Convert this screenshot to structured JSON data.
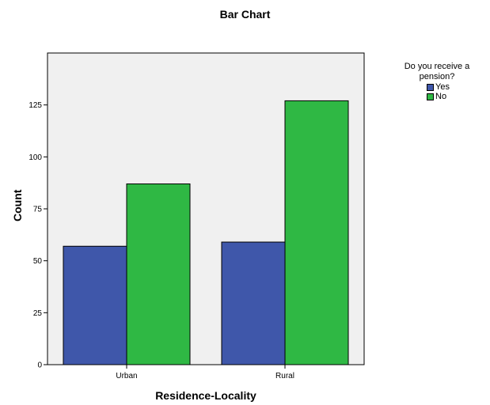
{
  "chart_data": {
    "type": "bar",
    "title": "Bar Chart",
    "xlabel": "Residence-Locality",
    "ylabel": "Count",
    "categories": [
      "Urban",
      "Rural"
    ],
    "series": [
      {
        "name": "Yes",
        "color": "#3f57aa",
        "values": [
          57,
          59
        ]
      },
      {
        "name": "No",
        "color": "#2fb844",
        "values": [
          87,
          127
        ]
      }
    ],
    "ylim": [
      0,
      150
    ],
    "yticks": [
      0,
      25,
      50,
      75,
      100,
      125
    ],
    "grid": false,
    "legend": {
      "title": "Do you receive a pension?",
      "title_lines": [
        "Do you receive a",
        "pension?"
      ],
      "position": "right"
    },
    "plot_background": "#f0f0f0"
  }
}
